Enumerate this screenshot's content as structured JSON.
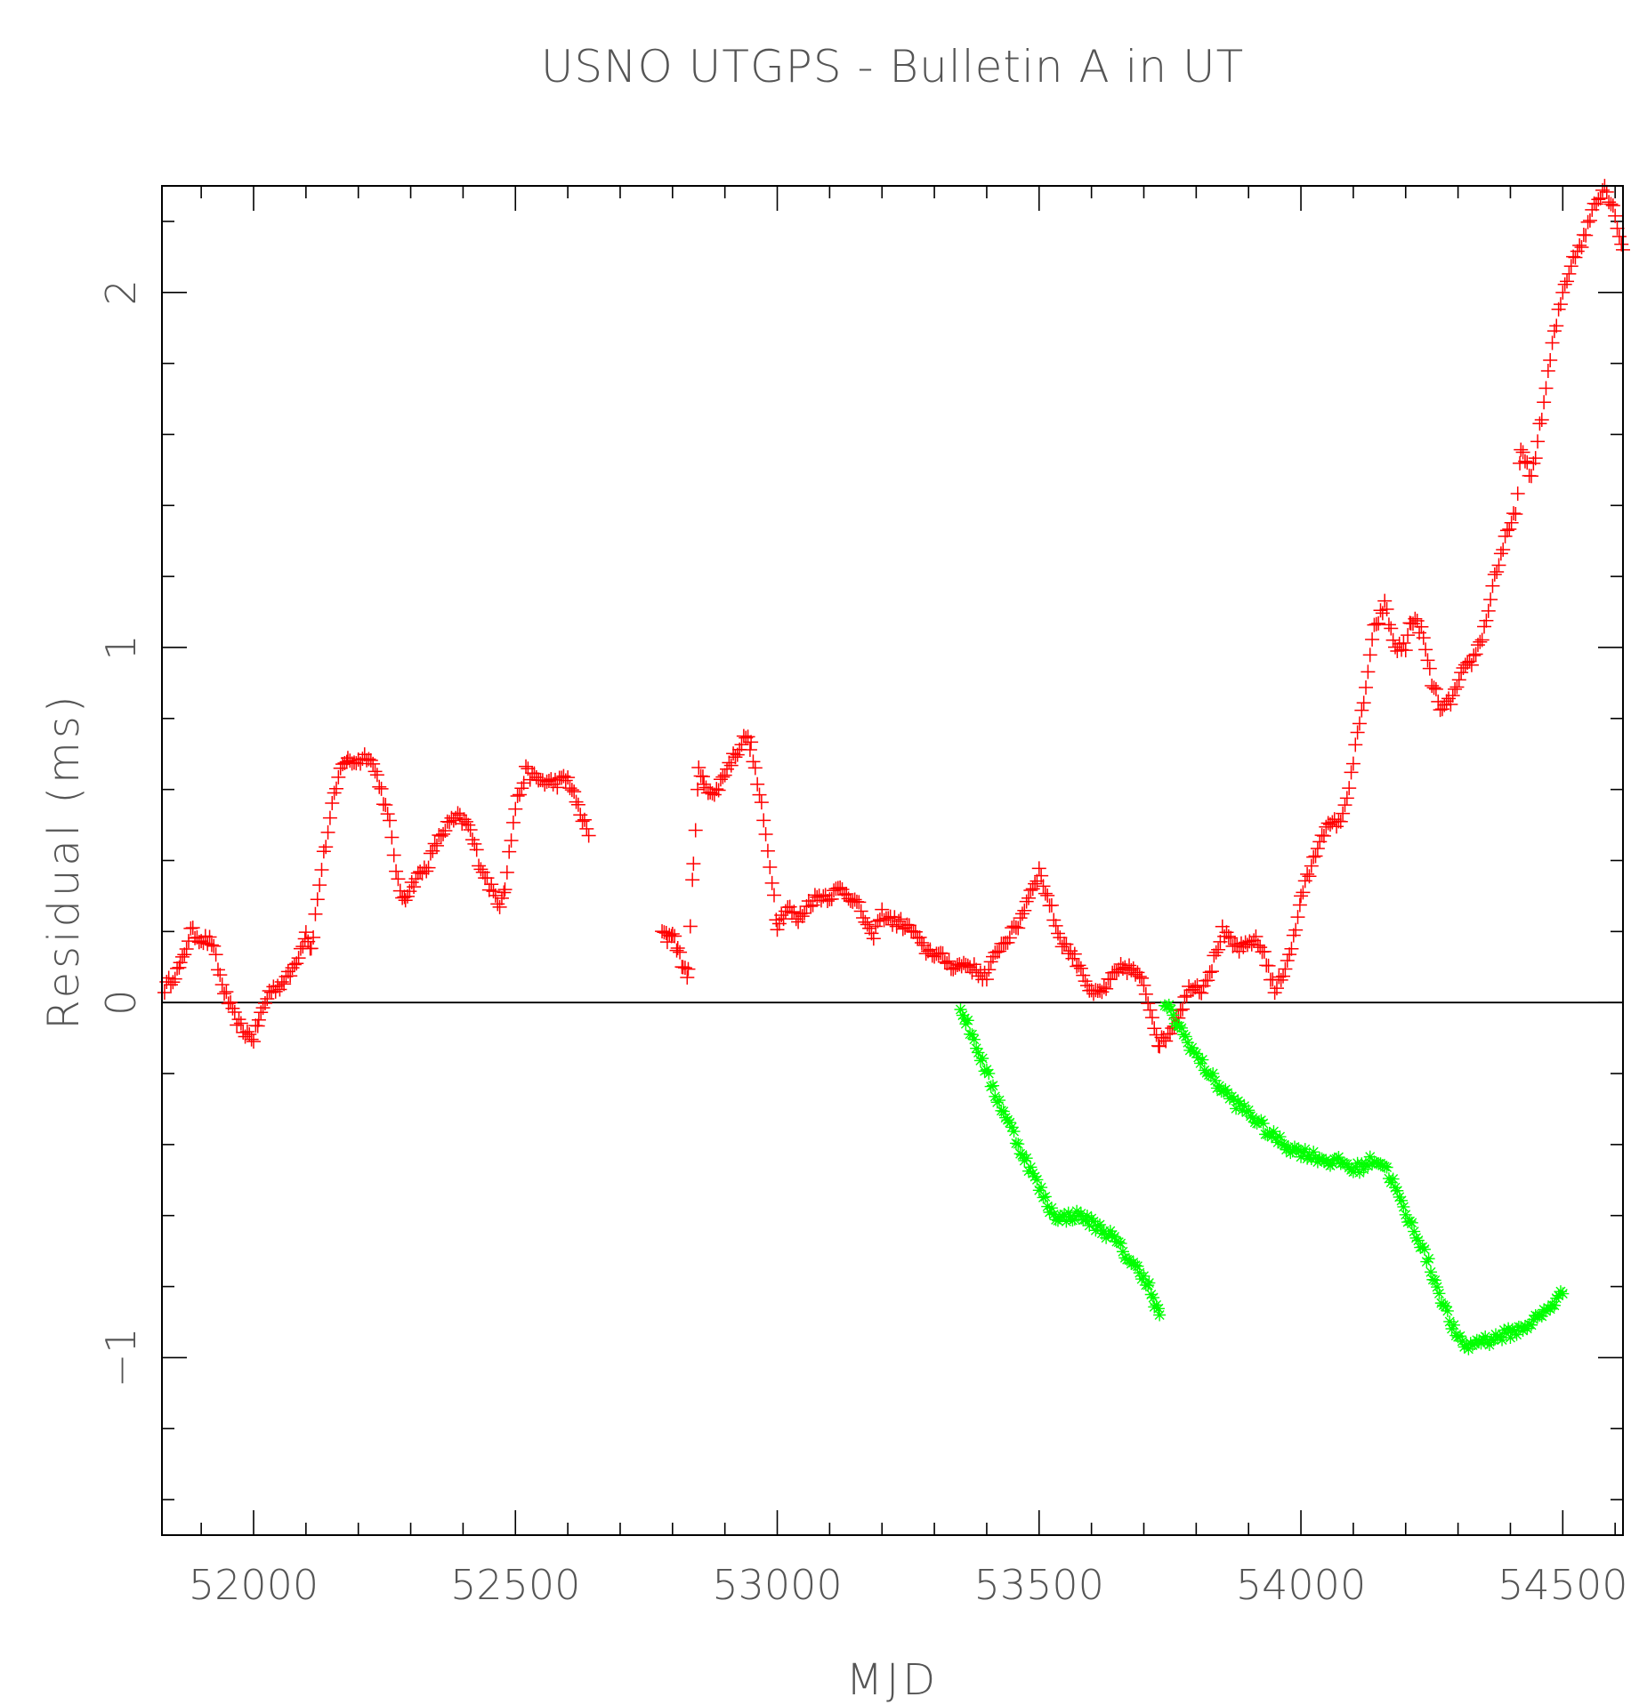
{
  "chart_data": {
    "type": "scatter",
    "title": "USNO UTGPS - Bulletin A in UT",
    "xlabel": "MJD",
    "ylabel": "Residual (ms)",
    "xlim": [
      51825,
      54615
    ],
    "ylim": [
      -1.5,
      2.3
    ],
    "x_ticks": [
      52000,
      52500,
      53000,
      53500,
      54000,
      54500
    ],
    "x_tick_labels": [
      "52000",
      "52500",
      "53000",
      "53500",
      "54000",
      "54500"
    ],
    "y_ticks": [
      -1,
      0,
      1,
      2
    ],
    "y_tick_labels": [
      "−1",
      "0",
      "1",
      "2"
    ],
    "x_minor_step": 100,
    "y_minor_step": 0.2,
    "zero_line": true,
    "grid": false,
    "legend": "none",
    "series": [
      {
        "marker": "plus",
        "color": "#ff0000",
        "segments": [
          {
            "x": [
              51830,
              51860,
              51880,
              51900,
              51920,
              51940,
              51960,
              51980,
              52000,
              52010,
              52030,
              52050,
              52070,
              52090,
              52100,
              52110,
              52130,
              52150,
              52170,
              52180,
              52200,
              52220,
              52240,
              52260,
              52280,
              52290,
              52310,
              52330,
              52350,
              52370,
              52390,
              52410,
              52430,
              52450,
              52470,
              52480,
              52500,
              52520,
              52540,
              52560,
              52580,
              52600,
              52620,
              52640
            ],
            "y": [
              0.04,
              0.1,
              0.2,
              0.18,
              0.17,
              0.05,
              -0.03,
              -0.08,
              -0.1,
              -0.05,
              0.03,
              0.05,
              0.08,
              0.15,
              0.2,
              0.15,
              0.38,
              0.55,
              0.68,
              0.68,
              0.68,
              0.7,
              0.62,
              0.5,
              0.3,
              0.3,
              0.35,
              0.38,
              0.45,
              0.5,
              0.52,
              0.5,
              0.4,
              0.33,
              0.28,
              0.33,
              0.55,
              0.65,
              0.63,
              0.62,
              0.62,
              0.63,
              0.55,
              0.47
            ]
          },
          {
            "x": [
              52780,
              52790,
              52800,
              52810,
              52820,
              52830,
              52840,
              52850,
              52860,
              52880,
              52900,
              52920,
              52940,
              52950,
              52970,
              52990,
              53000,
              53020,
              53040,
              53060,
              53080,
              53100,
              53120,
              53140,
              53160,
              53180,
              53200,
              53220,
              53240,
              53260,
              53280,
              53300,
              53320,
              53340,
              53360,
              53380,
              53400,
              53420,
              53440,
              53460,
              53480,
              53500,
              53520,
              53540,
              53560,
              53580,
              53600,
              53620,
              53640,
              53660,
              53680,
              53700,
              53720,
              53730,
              53750,
              53770,
              53790,
              53810,
              53830,
              53850,
              53870,
              53890,
              53910,
              53930,
              53950,
              53970,
              53990,
              54000,
              54020,
              54040,
              54060,
              54080,
              54100,
              54120,
              54140,
              54160,
              54180,
              54200,
              54210,
              54230,
              54250,
              54270,
              54290,
              54310,
              54330,
              54350,
              54370,
              54390,
              54410,
              54420,
              54440,
              54460,
              54480,
              54500,
              54520,
              54540,
              54560,
              54580,
              54600,
              54615
            ],
            "y": [
              0.2,
              0.18,
              0.2,
              0.15,
              0.1,
              0.08,
              0.4,
              0.65,
              0.62,
              0.58,
              0.65,
              0.7,
              0.75,
              0.72,
              0.55,
              0.35,
              0.22,
              0.27,
              0.23,
              0.28,
              0.3,
              0.3,
              0.32,
              0.3,
              0.26,
              0.18,
              0.25,
              0.23,
              0.22,
              0.2,
              0.15,
              0.14,
              0.12,
              0.1,
              0.11,
              0.09,
              0.07,
              0.15,
              0.18,
              0.22,
              0.3,
              0.37,
              0.28,
              0.18,
              0.14,
              0.1,
              0.02,
              0.03,
              0.07,
              0.1,
              0.09,
              0.05,
              -0.06,
              -0.12,
              -0.08,
              -0.02,
              0.05,
              0.04,
              0.1,
              0.2,
              0.16,
              0.15,
              0.18,
              0.14,
              0.03,
              0.1,
              0.2,
              0.3,
              0.38,
              0.48,
              0.5,
              0.52,
              0.68,
              0.85,
              1.05,
              1.12,
              1.0,
              1.0,
              1.08,
              1.05,
              0.9,
              0.82,
              0.86,
              0.93,
              0.97,
              1.05,
              1.2,
              1.3,
              1.38,
              1.55,
              1.48,
              1.65,
              1.85,
              2.0,
              2.1,
              2.15,
              2.25,
              2.3,
              2.22,
              2.12
            ]
          }
        ]
      },
      {
        "marker": "asterisk",
        "color": "#00ff00",
        "segments": [
          {
            "x": [
              53350,
              53360,
              53380,
              53400,
              53420,
              53440,
              53460,
              53480,
              53500,
              53520,
              53540,
              53560,
              53580,
              53600,
              53620,
              53640,
              53660,
              53680,
              53700,
              53710,
              53720,
              53730
            ],
            "y": [
              -0.02,
              -0.05,
              -0.12,
              -0.2,
              -0.27,
              -0.33,
              -0.4,
              -0.46,
              -0.52,
              -0.58,
              -0.61,
              -0.6,
              -0.6,
              -0.62,
              -0.64,
              -0.66,
              -0.7,
              -0.74,
              -0.77,
              -0.8,
              -0.85,
              -0.88
            ]
          },
          {
            "x": [
              53740,
              53760,
              53780,
              53800,
              53820,
              53840,
              53860,
              53880,
              53900,
              53920,
              53940,
              53960,
              53980,
              54000,
              54020,
              54040,
              54060,
              54080,
              54100,
              54120,
              54140,
              54160,
              54180,
              54200,
              54220,
              54240,
              54260,
              54280,
              54300,
              54320,
              54340,
              54360,
              54380,
              54400,
              54420,
              54440,
              54460,
              54480,
              54500
            ],
            "y": [
              0.0,
              -0.05,
              -0.1,
              -0.15,
              -0.19,
              -0.23,
              -0.26,
              -0.29,
              -0.31,
              -0.34,
              -0.37,
              -0.39,
              -0.41,
              -0.42,
              -0.43,
              -0.44,
              -0.45,
              -0.45,
              -0.47,
              -0.46,
              -0.44,
              -0.46,
              -0.52,
              -0.6,
              -0.65,
              -0.72,
              -0.8,
              -0.88,
              -0.95,
              -0.97,
              -0.95,
              -0.95,
              -0.94,
              -0.93,
              -0.92,
              -0.9,
              -0.88,
              -0.85,
              -0.82
            ]
          }
        ]
      }
    ]
  }
}
